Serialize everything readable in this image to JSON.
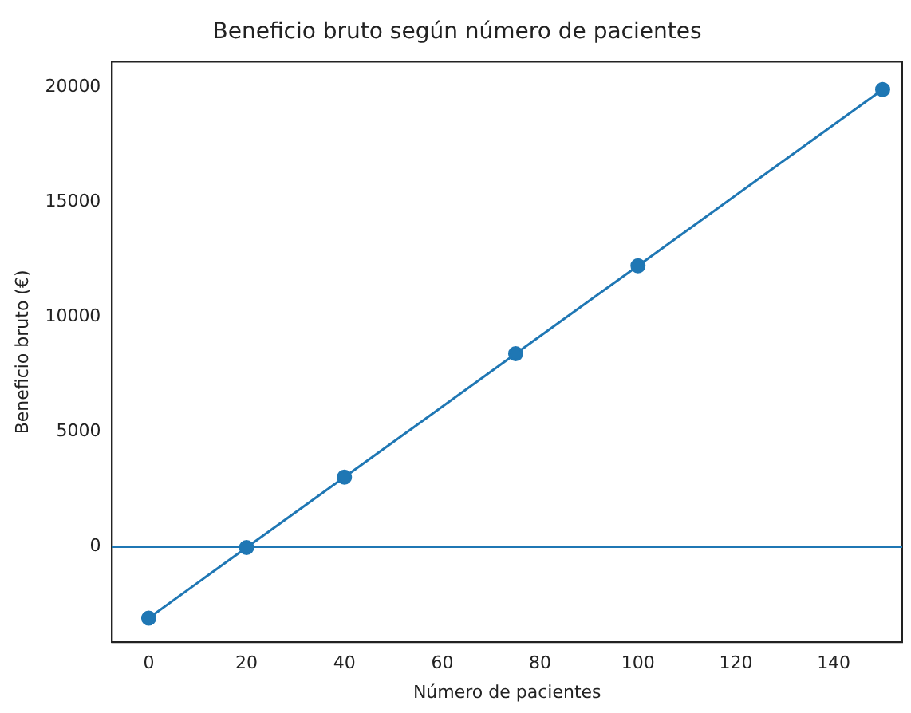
{
  "chart_data": {
    "type": "line",
    "title": "Beneficio bruto según número de pacientes",
    "xlabel": "Número de pacientes",
    "ylabel": "Beneficio bruto (€)",
    "x": [
      0,
      20,
      40,
      75,
      100,
      150
    ],
    "series": [
      {
        "color": "#1f77b4",
        "values": [
          -3100,
          -30,
          3030,
          8400,
          12230,
          19900
        ]
      }
    ],
    "xlim": [
      -7.5,
      154
    ],
    "xticks": [
      0,
      20,
      40,
      60,
      80,
      100,
      120,
      140
    ],
    "ylim": [
      -4150,
      21100
    ],
    "yticks": [
      0,
      5000,
      10000,
      15000,
      20000
    ],
    "ref_lines": [
      {
        "axis": "y",
        "value": 0,
        "color": "#1f77b4",
        "line_style": "solid"
      }
    ],
    "marker": "circle",
    "line_style": "solid",
    "grid": false,
    "legend": false
  }
}
